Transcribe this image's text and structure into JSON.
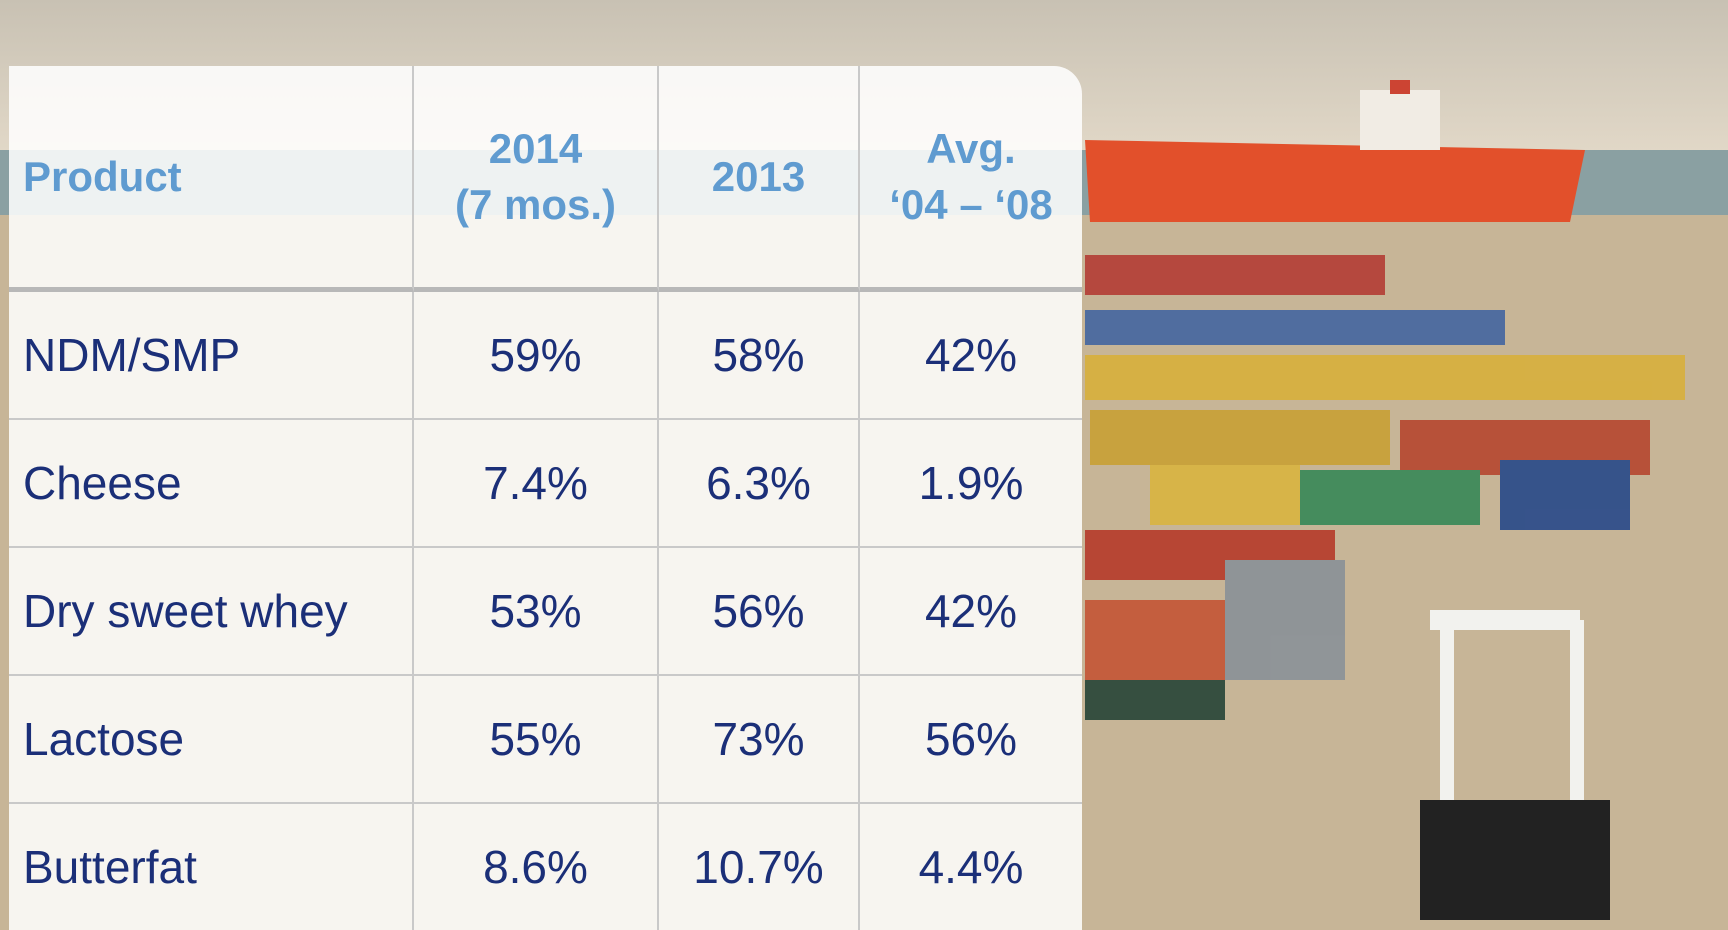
{
  "table": {
    "header": [
      [
        "Product"
      ],
      [
        "2014",
        "(7 mos.)"
      ],
      [
        "2013"
      ],
      [
        "Avg.",
        "‘04 – ‘08"
      ]
    ],
    "rows": [
      [
        "NDM/SMP",
        "59%",
        "58%",
        "42%"
      ],
      [
        "Cheese",
        "7.4%",
        "6.3%",
        "1.9%"
      ],
      [
        "Dry sweet whey",
        "53%",
        "56%",
        "42%"
      ],
      [
        "Lactose",
        "55%",
        "73%",
        "56%"
      ],
      [
        "Butterfat",
        "8.6%",
        "10.7%",
        "4.4%"
      ]
    ]
  }
}
